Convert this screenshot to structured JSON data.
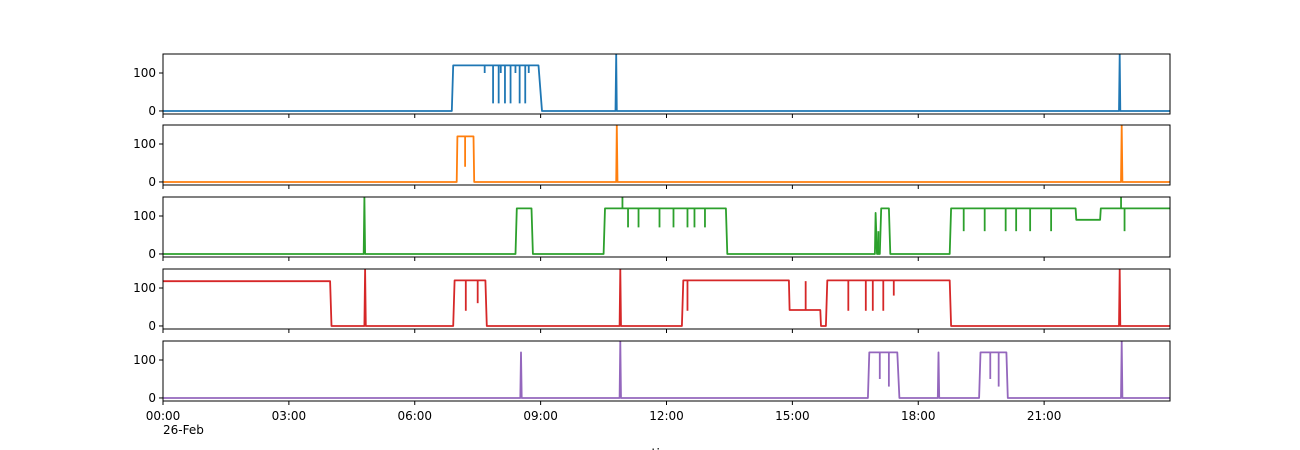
{
  "chart_data": {
    "type": "line",
    "xlabel": "time",
    "xlim": [
      "00:00",
      "24:00"
    ],
    "x_ticks": [
      "00:00",
      "03:00",
      "06:00",
      "09:00",
      "12:00",
      "15:00",
      "18:00",
      "21:00"
    ],
    "x_tick_sublabel": "26-Feb",
    "y_ticks": [
      0,
      100
    ],
    "ylim": [
      -8,
      150
    ],
    "grid": false,
    "legend": "none",
    "panels": [
      {
        "color": "#1f77b4",
        "points": [
          [
            "00:00",
            0
          ],
          [
            "06:53",
            0
          ],
          [
            "06:55",
            120
          ],
          [
            "08:57",
            120
          ],
          [
            "09:02",
            0
          ],
          [
            "10:47",
            0
          ],
          [
            "10:48",
            150
          ],
          [
            "10:49",
            0
          ],
          [
            "22:47",
            0
          ],
          [
            "22:48",
            150
          ],
          [
            "22:49",
            0
          ],
          [
            "24:00",
            0
          ]
        ],
        "spikes": [
          [
            "07:40",
            100
          ],
          [
            "07:52",
            20
          ],
          [
            "08:00",
            20
          ],
          [
            "08:03",
            100
          ],
          [
            "08:09",
            20
          ],
          [
            "08:17",
            20
          ],
          [
            "08:24",
            100
          ],
          [
            "08:30",
            20
          ],
          [
            "08:38",
            20
          ],
          [
            "08:43",
            100
          ]
        ]
      },
      {
        "color": "#ff7f0e",
        "points": [
          [
            "00:00",
            0
          ],
          [
            "07:00",
            0
          ],
          [
            "07:01",
            120
          ],
          [
            "07:24",
            120
          ],
          [
            "07:25",
            0
          ],
          [
            "10:48",
            0
          ],
          [
            "10:49",
            150
          ],
          [
            "10:50",
            0
          ],
          [
            "22:50",
            0
          ],
          [
            "22:51",
            150
          ],
          [
            "22:52",
            0
          ],
          [
            "24:00",
            0
          ]
        ],
        "spikes": [
          [
            "07:12",
            40
          ]
        ]
      },
      {
        "color": "#2ca02c",
        "points": [
          [
            "00:00",
            0
          ],
          [
            "04:47",
            0
          ],
          [
            "04:48",
            150
          ],
          [
            "04:49",
            0
          ],
          [
            "08:24",
            0
          ],
          [
            "08:26",
            120
          ],
          [
            "08:47",
            120
          ],
          [
            "08:49",
            0
          ],
          [
            "10:30",
            0
          ],
          [
            "10:32",
            120
          ],
          [
            "13:25",
            120
          ],
          [
            "13:27",
            0
          ],
          [
            "16:58",
            0
          ],
          [
            "16:59",
            108
          ],
          [
            "17:01",
            0
          ],
          [
            "17:05",
            0
          ],
          [
            "17:07",
            120
          ],
          [
            "17:18",
            120
          ],
          [
            "17:20",
            0
          ],
          [
            "18:45",
            0
          ],
          [
            "18:47",
            120
          ],
          [
            "21:45",
            120
          ],
          [
            "21:46",
            90
          ],
          [
            "22:20",
            90
          ],
          [
            "22:21",
            120
          ],
          [
            "24:00",
            120
          ]
        ],
        "spikes": [
          [
            "10:57",
            150
          ],
          [
            "11:05",
            70
          ],
          [
            "11:20",
            70
          ],
          [
            "11:50",
            70
          ],
          [
            "12:10",
            70
          ],
          [
            "12:30",
            70
          ],
          [
            "12:40",
            70
          ],
          [
            "12:55",
            70
          ],
          [
            "17:03",
            60
          ],
          [
            "19:05",
            60
          ],
          [
            "19:35",
            60
          ],
          [
            "20:05",
            60
          ],
          [
            "20:20",
            60
          ],
          [
            "20:40",
            60
          ],
          [
            "21:10",
            60
          ],
          [
            "22:50",
            150
          ],
          [
            "22:55",
            60
          ]
        ]
      },
      {
        "color": "#d62728",
        "points": [
          [
            "00:00",
            118
          ],
          [
            "03:59",
            118
          ],
          [
            "04:01",
            0
          ],
          [
            "04:48",
            0
          ],
          [
            "04:49",
            150
          ],
          [
            "04:50",
            0
          ],
          [
            "06:55",
            0
          ],
          [
            "06:57",
            120
          ],
          [
            "07:41",
            120
          ],
          [
            "07:43",
            0
          ],
          [
            "10:53",
            0
          ],
          [
            "10:54",
            150
          ],
          [
            "10:55",
            0
          ],
          [
            "12:22",
            0
          ],
          [
            "12:24",
            120
          ],
          [
            "14:55",
            120
          ],
          [
            "14:56",
            42
          ],
          [
            "15:40",
            42
          ],
          [
            "15:41",
            0
          ],
          [
            "15:48",
            0
          ],
          [
            "15:50",
            120
          ],
          [
            "18:45",
            120
          ],
          [
            "18:47",
            0
          ],
          [
            "22:47",
            0
          ],
          [
            "22:48",
            150
          ],
          [
            "22:49",
            0
          ],
          [
            "24:00",
            0
          ]
        ],
        "spikes": [
          [
            "07:13",
            40
          ],
          [
            "07:30",
            60
          ],
          [
            "12:30",
            40
          ],
          [
            "15:19",
            118
          ],
          [
            "16:20",
            40
          ],
          [
            "16:45",
            40
          ],
          [
            "16:55",
            40
          ],
          [
            "17:10",
            40
          ],
          [
            "17:25",
            80
          ]
        ]
      },
      {
        "color": "#9467bd",
        "points": [
          [
            "00:00",
            0
          ],
          [
            "08:31",
            0
          ],
          [
            "08:32",
            120
          ],
          [
            "08:33",
            0
          ],
          [
            "10:53",
            0
          ],
          [
            "10:54",
            150
          ],
          [
            "10:55",
            0
          ],
          [
            "16:48",
            0
          ],
          [
            "16:50",
            120
          ],
          [
            "17:30",
            120
          ],
          [
            "17:33",
            0
          ],
          [
            "18:28",
            0
          ],
          [
            "18:29",
            120
          ],
          [
            "18:30",
            0
          ],
          [
            "19:27",
            0
          ],
          [
            "19:29",
            120
          ],
          [
            "20:06",
            120
          ],
          [
            "20:08",
            0
          ],
          [
            "22:50",
            0
          ],
          [
            "22:51",
            150
          ],
          [
            "22:52",
            0
          ],
          [
            "24:00",
            0
          ]
        ],
        "spikes": [
          [
            "17:05",
            50
          ],
          [
            "17:18",
            30
          ],
          [
            "19:43",
            50
          ],
          [
            "19:55",
            30
          ]
        ]
      }
    ]
  }
}
